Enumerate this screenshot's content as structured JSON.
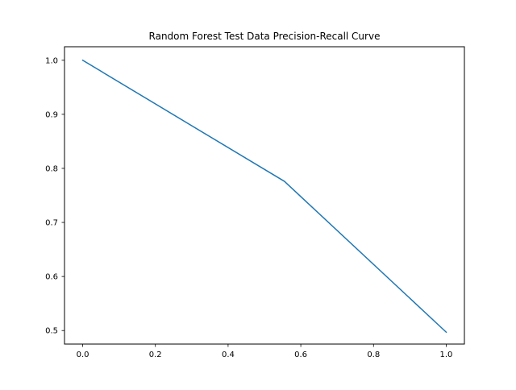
{
  "chart_data": {
    "type": "line",
    "title": "Random Forest Test Data Precision-Recall Curve",
    "xlabel": "",
    "ylabel": "",
    "xlim": [
      -0.05,
      1.05
    ],
    "ylim": [
      0.475,
      1.025
    ],
    "xticks": [
      0.0,
      0.2,
      0.4,
      0.6,
      0.8,
      1.0
    ],
    "xtick_labels": [
      "0.0",
      "0.2",
      "0.4",
      "0.6",
      "0.8",
      "1.0"
    ],
    "yticks": [
      0.5,
      0.6,
      0.7,
      0.8,
      0.9,
      1.0
    ],
    "ytick_labels": [
      "0.5",
      "0.6",
      "0.7",
      "0.8",
      "0.9",
      "1.0"
    ],
    "grid": false,
    "legend": "none",
    "series": [
      {
        "color": "#1f77b4",
        "x": [
          0.0,
          0.555,
          1.0
        ],
        "y": [
          1.0,
          0.776,
          0.497
        ]
      }
    ]
  }
}
